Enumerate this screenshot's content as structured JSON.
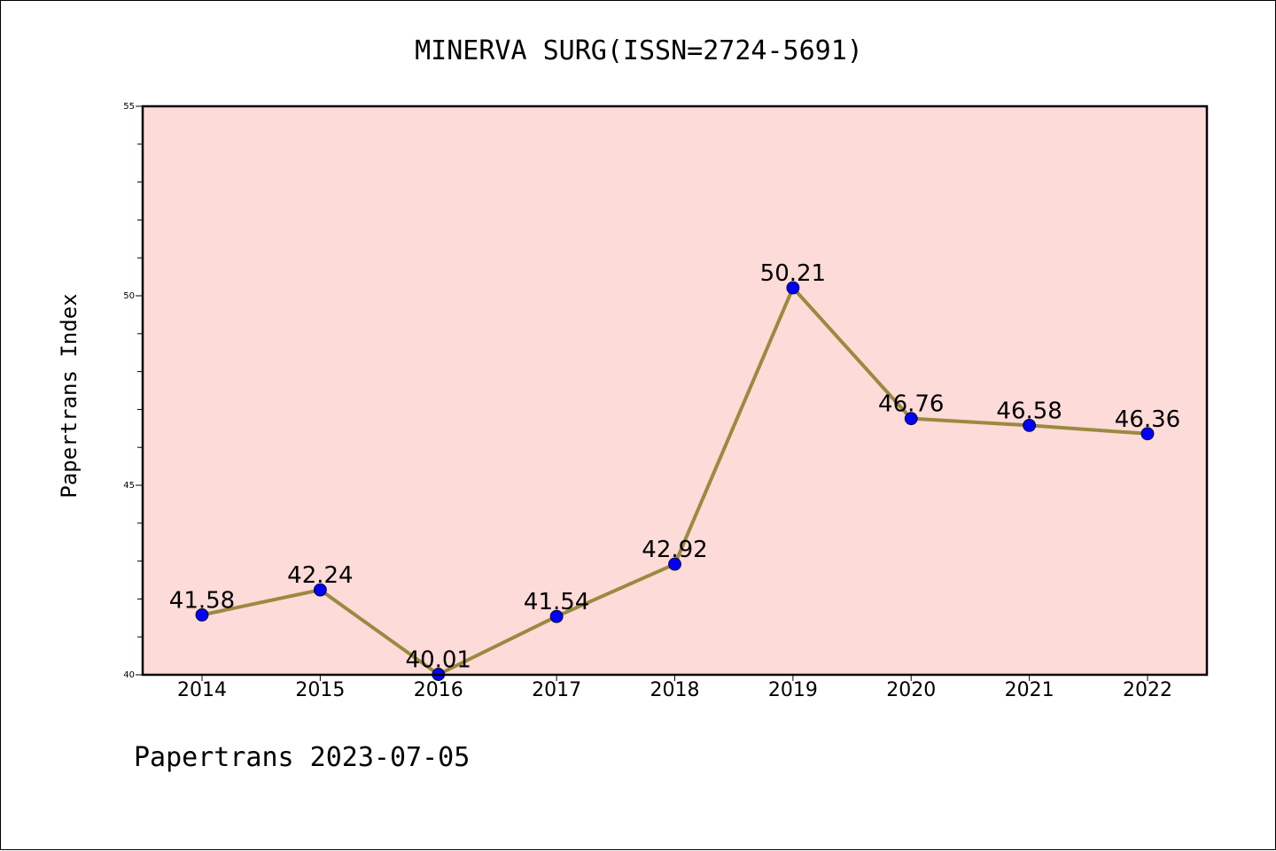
{
  "footer": "Papertrans 2023-07-05",
  "colors": {
    "plot_background": "#fddbd8",
    "line": "#9a8a40",
    "marker": "#0000ff"
  },
  "chart_data": {
    "type": "line",
    "title": "MINERVA SURG(ISSN=2724-5691)",
    "xlabel": "",
    "ylabel": "Papertrans Index",
    "categories": [
      "2014",
      "2015",
      "2016",
      "2017",
      "2018",
      "2019",
      "2020",
      "2021",
      "2022"
    ],
    "series": [
      {
        "values": [
          41.58,
          42.24,
          40.01,
          41.54,
          42.92,
          50.21,
          46.76,
          46.58,
          46.36
        ],
        "labels": [
          "41.58",
          "42.24",
          "40.01",
          "41.54",
          "42.92",
          "50.21",
          "46.76",
          "46.58",
          "46.36"
        ]
      }
    ],
    "ylim": [
      40,
      55
    ],
    "yticks": [
      40,
      45,
      50,
      55
    ],
    "ytick_labels": [
      "40",
      "45",
      "50",
      "55"
    ],
    "grid": false,
    "legend": "none"
  }
}
